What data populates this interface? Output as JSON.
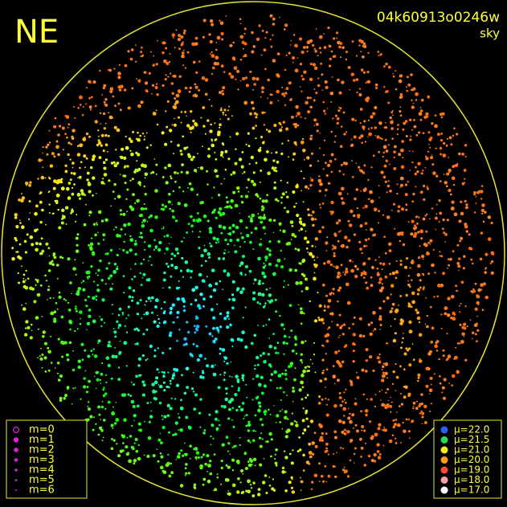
{
  "header": {
    "corner_label": "NE",
    "image_id": "04k60913o0246w",
    "image_type": "sky"
  },
  "magnitude_legend": [
    {
      "label": "m=0",
      "size": 3.5,
      "open": true
    },
    {
      "label": "m=1",
      "size": 3.2
    },
    {
      "label": "m=2",
      "size": 2.7
    },
    {
      "label": "m=3",
      "size": 2.2
    },
    {
      "label": "m=4",
      "size": 1.8
    },
    {
      "label": "m=5",
      "size": 1.4
    },
    {
      "label": "m=6",
      "size": 1
    }
  ],
  "brightness_legend": [
    {
      "label": "μ=22.0",
      "color": "#2a60ff"
    },
    {
      "label": "μ=21.5",
      "color": "#22dd55"
    },
    {
      "label": "μ=21.0",
      "color": "#f0f020"
    },
    {
      "label": "μ=20.0",
      "color": "#ff9a20"
    },
    {
      "label": "μ=19.0",
      "color": "#ff4a30"
    },
    {
      "label": "μ=18.0",
      "color": "#ffa0a0"
    },
    {
      "label": "μ=17.0",
      "color": "#ffffff"
    }
  ]
}
